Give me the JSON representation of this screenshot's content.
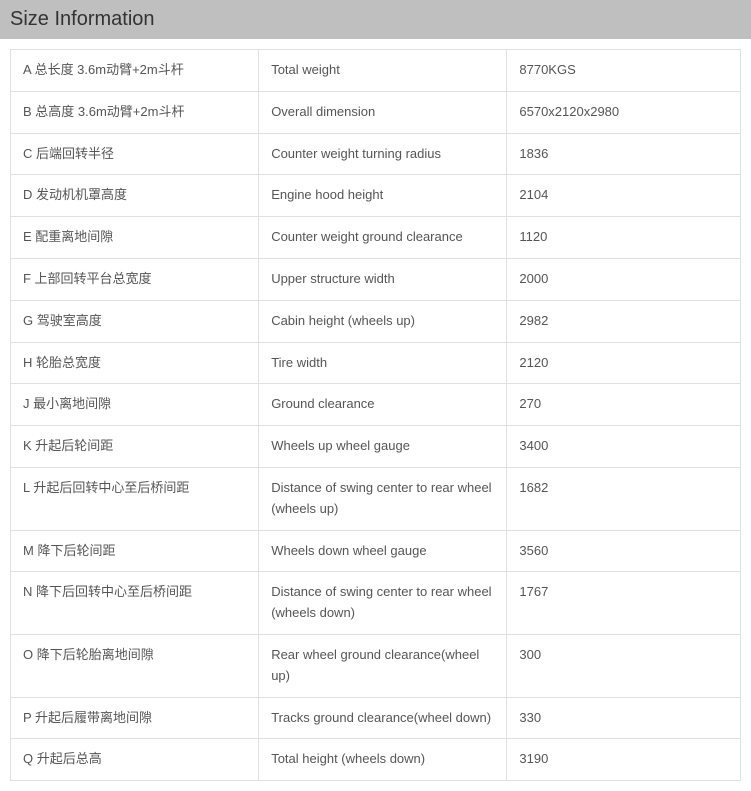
{
  "header": {
    "title": "Size Information"
  },
  "table": {
    "background_color": "#ffffff",
    "border_color": "#e0e0e0",
    "text_color": "#555555",
    "font_size": 13,
    "rows": [
      {
        "c1": "A 总长度 3.6m动臂+2m斗杆",
        "c2": "Total weight",
        "c3": "8770KGS"
      },
      {
        "c1": "B 总高度 3.6m动臂+2m斗杆",
        "c2": "Overall dimension",
        "c3": "6570x2120x2980"
      },
      {
        "c1": "C 后端回转半径",
        "c2": "Counter weight turning radius",
        "c3": "1836"
      },
      {
        "c1": "D 发动机机罩高度",
        "c2": "Engine hood height",
        "c3": "2104"
      },
      {
        "c1": "E 配重离地间隙",
        "c2": "Counter weight ground clearance",
        "c3": "1120"
      },
      {
        "c1": "F 上部回转平台总宽度",
        "c2": "Upper structure width",
        "c3": "2000"
      },
      {
        "c1": "G 驾驶室高度",
        "c2": "Cabin height (wheels up)",
        "c3": "2982"
      },
      {
        "c1": "H 轮胎总宽度",
        "c2": "Tire width",
        "c3": "2120"
      },
      {
        "c1": "J 最小离地间隙",
        "c2": "Ground clearance",
        "c3": "270"
      },
      {
        "c1": "K 升起后轮间距",
        "c2": "Wheels up wheel gauge",
        "c3": "3400"
      },
      {
        "c1": "L 升起后回转中心至后桥间距",
        "c2": "Distance of swing center to rear wheel (wheels up)",
        "c3": "1682"
      },
      {
        "c1": "M 降下后轮间距",
        "c2": "Wheels down wheel gauge",
        "c3": "3560"
      },
      {
        "c1": "N 降下后回转中心至后桥间距",
        "c2": "Distance of swing center to rear wheel (wheels down)",
        "c3": "1767"
      },
      {
        "c1": "O 降下后轮胎离地间隙",
        "c2": "Rear wheel ground clearance(wheel up)",
        "c3": "300"
      },
      {
        "c1": "P 升起后履带离地间隙",
        "c2": "Tracks ground clearance(wheel down)",
        "c3": "330"
      },
      {
        "c1": "Q 升起后总高",
        "c2": "Total height (wheels down)",
        "c3": "3190"
      }
    ]
  }
}
